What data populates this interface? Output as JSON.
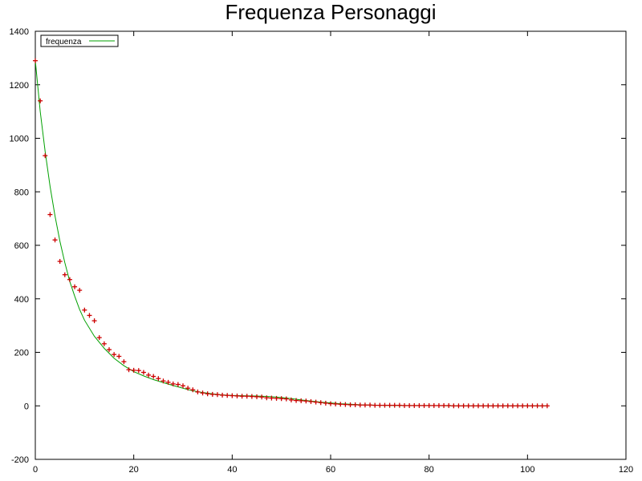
{
  "chart_data": {
    "type": "scatter",
    "title": "Frequenza Personaggi",
    "xlabel": "",
    "ylabel": "",
    "xlim": [
      0,
      120
    ],
    "ylim": [
      -200,
      1400
    ],
    "x_ticks": [
      0,
      20,
      40,
      60,
      80,
      100,
      120
    ],
    "y_ticks": [
      -200,
      0,
      200,
      400,
      600,
      800,
      1000,
      1200,
      1400
    ],
    "grid": false,
    "legend_position": "top-left",
    "legend": {
      "label": "frequenza",
      "color": "#00a000"
    },
    "series": [
      {
        "name": "",
        "style": "points",
        "marker": "plus",
        "color": "#cc0000",
        "x": [
          0,
          1,
          2,
          3,
          4,
          5,
          6,
          7,
          8,
          9,
          10,
          11,
          12,
          13,
          14,
          15,
          16,
          17,
          18,
          19,
          20,
          21,
          22,
          23,
          24,
          25,
          26,
          27,
          28,
          29,
          30,
          31,
          32,
          33,
          34,
          35,
          36,
          37,
          38,
          39,
          40,
          41,
          42,
          43,
          44,
          45,
          46,
          47,
          48,
          49,
          50,
          51,
          52,
          53,
          54,
          55,
          56,
          57,
          58,
          59,
          60,
          61,
          62,
          63,
          64,
          65,
          66,
          67,
          68,
          69,
          70,
          71,
          72,
          73,
          74,
          75,
          76,
          77,
          78,
          79,
          80,
          81,
          82,
          83,
          84,
          85,
          86,
          87,
          88,
          89,
          90,
          91,
          92,
          93,
          94,
          95,
          96,
          97,
          98,
          99,
          100,
          101,
          102,
          103,
          104
        ],
        "y": [
          1290,
          1140,
          935,
          715,
          620,
          540,
          490,
          472,
          445,
          432,
          358,
          338,
          318,
          255,
          232,
          210,
          192,
          185,
          165,
          135,
          133,
          132,
          125,
          115,
          110,
          102,
          93,
          88,
          82,
          80,
          75,
          66,
          60,
          52,
          48,
          45,
          43,
          42,
          40,
          39,
          38,
          37,
          36,
          36,
          35,
          34,
          33,
          30,
          29,
          28,
          27,
          26,
          22,
          20,
          19,
          18,
          16,
          14,
          12,
          10,
          8,
          7,
          6,
          5,
          4,
          4,
          3,
          3,
          3,
          2,
          2,
          2,
          2,
          2,
          2,
          1,
          1,
          1,
          1,
          1,
          1,
          1,
          1,
          1,
          1,
          0,
          0,
          0,
          0,
          0,
          0,
          0,
          0,
          0,
          0,
          0,
          0,
          0,
          0,
          0,
          0,
          0,
          0,
          0,
          0
        ]
      },
      {
        "name": "frequenza",
        "style": "line",
        "color": "#00a000",
        "x": [
          0,
          1,
          2,
          3,
          4,
          5,
          6,
          7,
          8,
          9,
          10,
          12,
          14,
          16,
          18,
          20,
          22,
          24,
          26,
          28,
          30,
          32,
          34,
          36,
          38,
          40,
          42,
          44,
          46,
          48,
          50,
          52,
          54,
          56,
          58,
          60,
          62,
          64,
          66,
          68,
          70,
          75,
          80,
          85,
          90,
          95,
          100,
          104
        ],
        "y": [
          1290,
          1100,
          950,
          820,
          710,
          615,
          535,
          465,
          410,
          360,
          320,
          260,
          215,
          178,
          150,
          128,
          112,
          98,
          87,
          76,
          66,
          56,
          50,
          45,
          41,
          39,
          38,
          37,
          36,
          34,
          31,
          27,
          22,
          18,
          14,
          11,
          8,
          6,
          4,
          3,
          2,
          1,
          1,
          0,
          0,
          0,
          0,
          0
        ]
      }
    ]
  }
}
